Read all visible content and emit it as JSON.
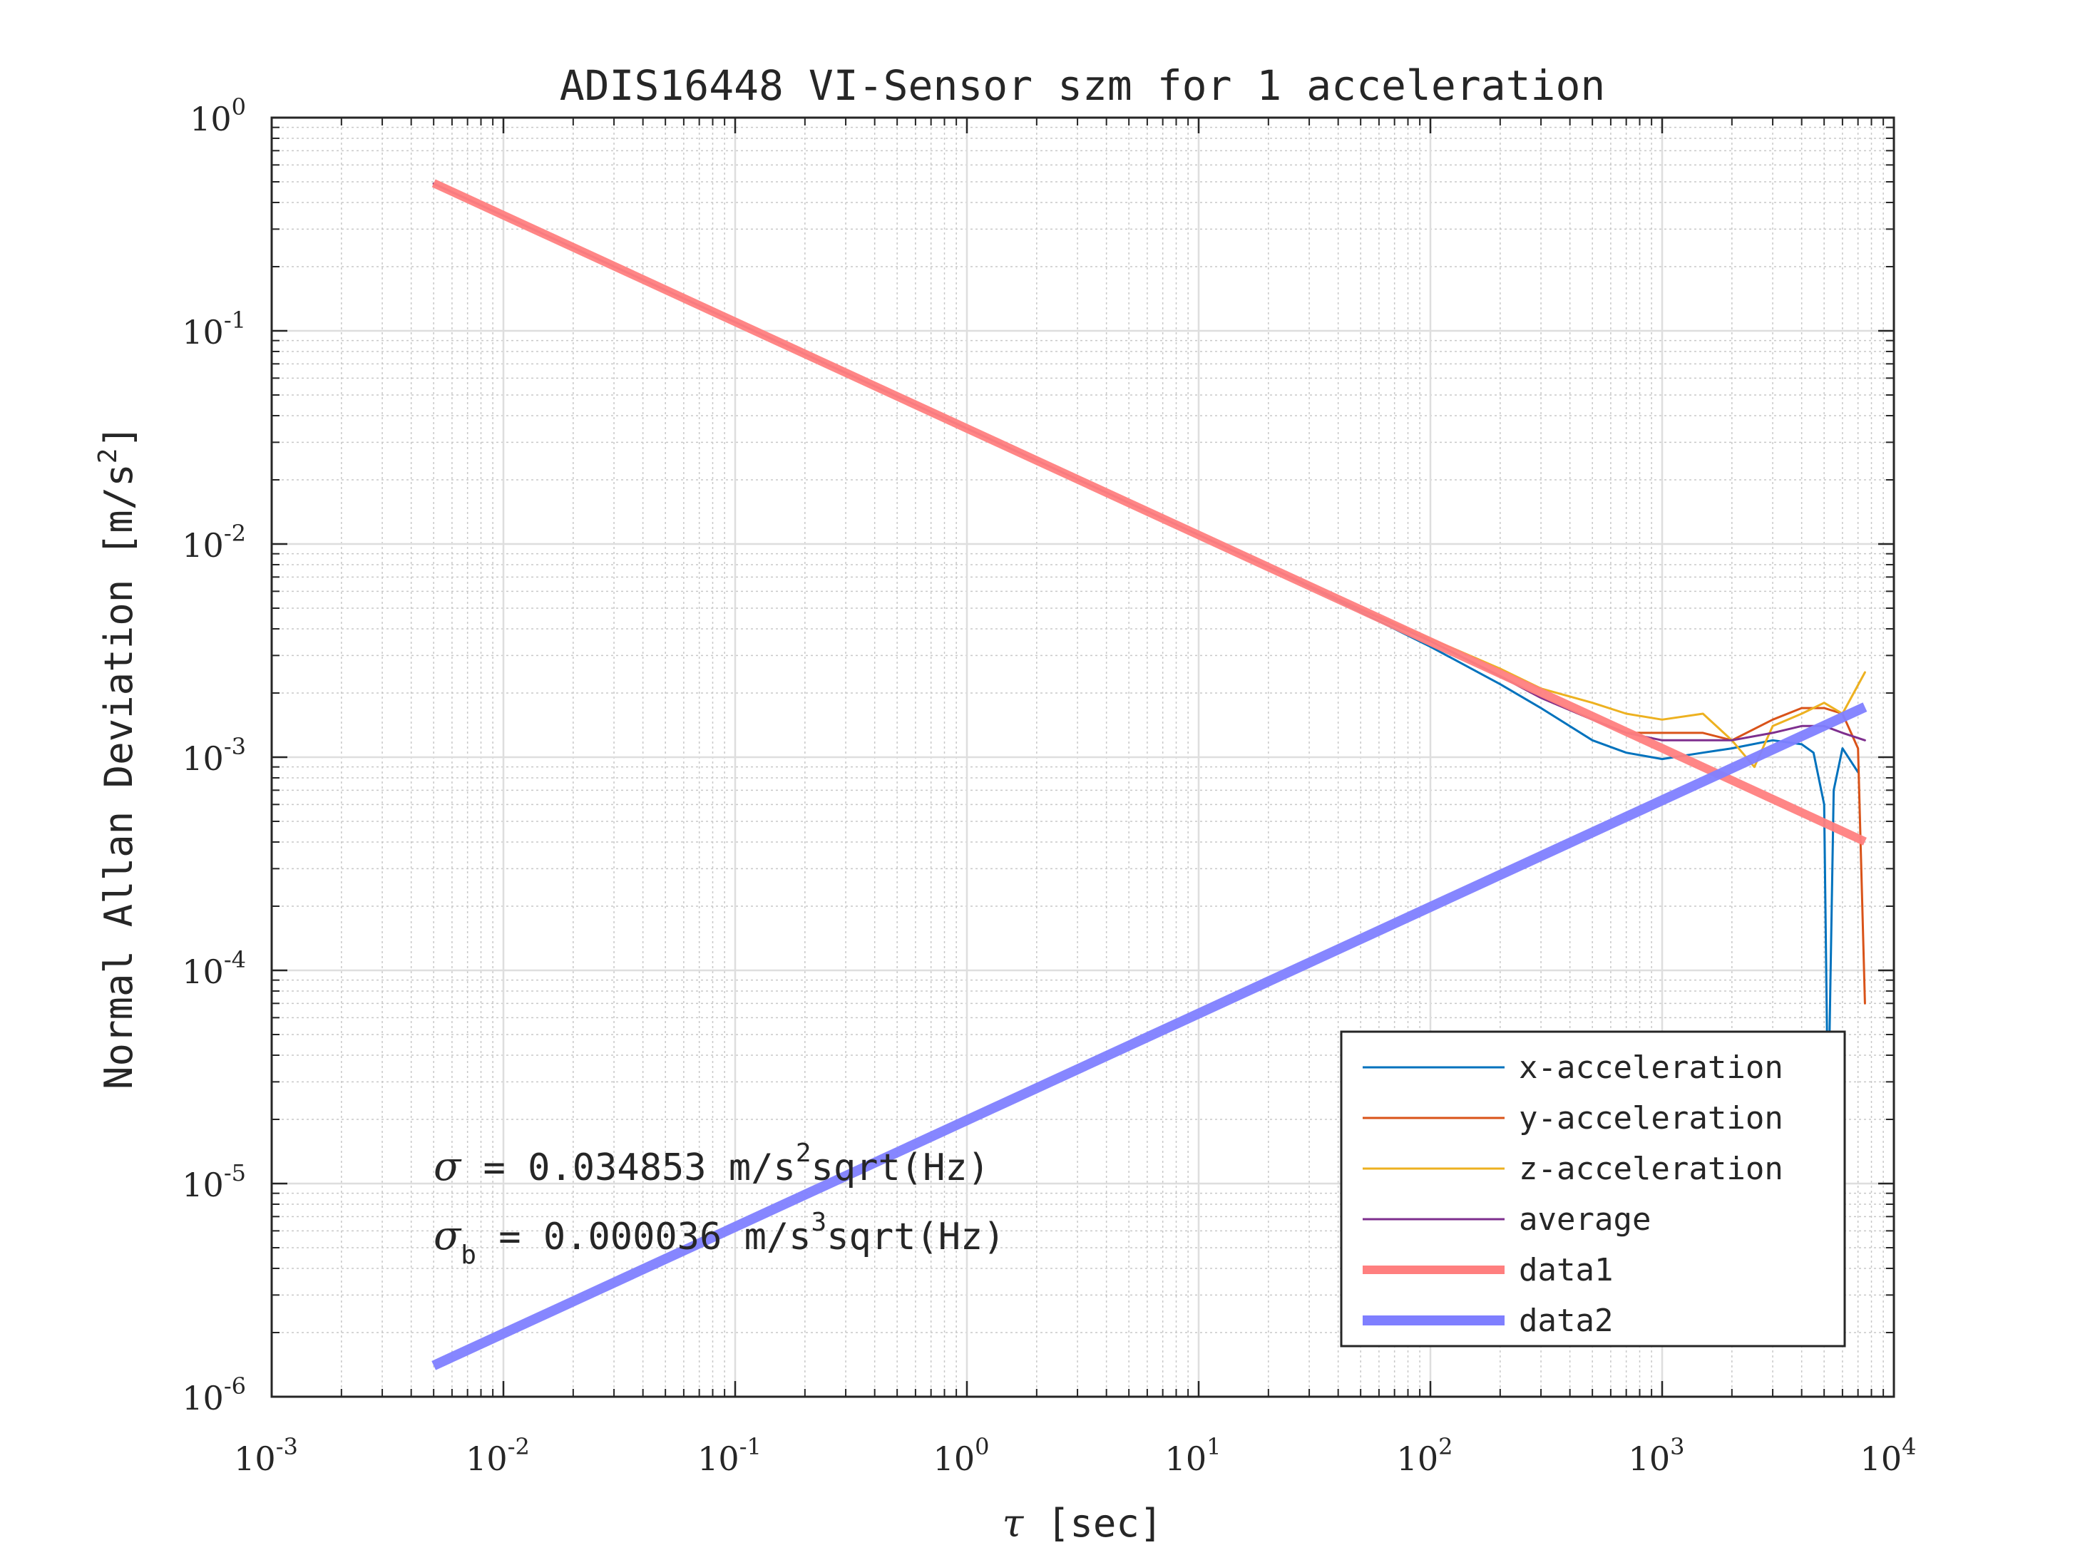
{
  "chart_data": {
    "type": "line",
    "title": "ADIS16448 VI-Sensor szm for 1 acceleration",
    "xlabel_symbol": "τ",
    "xlabel_text": " [sec]",
    "ylabel_text": "Normal Allan Deviation [m/s",
    "ylabel_sup": "2",
    "ylabel_end": "]",
    "xscale": "log",
    "yscale": "log",
    "xlim": [
      0.001,
      10000
    ],
    "ylim": [
      1e-06,
      1
    ],
    "grid": true,
    "minor_grid": true,
    "legend_position": "bottom-right",
    "x_ticks": [
      {
        "base": "10",
        "exp": "-3"
      },
      {
        "base": "10",
        "exp": "-2"
      },
      {
        "base": "10",
        "exp": "-1"
      },
      {
        "base": "10",
        "exp": "0"
      },
      {
        "base": "10",
        "exp": "1"
      },
      {
        "base": "10",
        "exp": "2"
      },
      {
        "base": "10",
        "exp": "3"
      },
      {
        "base": "10",
        "exp": "4"
      }
    ],
    "y_ticks": [
      {
        "base": "10",
        "exp": "-6"
      },
      {
        "base": "10",
        "exp": "-5"
      },
      {
        "base": "10",
        "exp": "-4"
      },
      {
        "base": "10",
        "exp": "-3"
      },
      {
        "base": "10",
        "exp": "-2"
      },
      {
        "base": "10",
        "exp": "-1"
      },
      {
        "base": "10",
        "exp": "0"
      }
    ],
    "series": [
      {
        "name": "x-acceleration",
        "color": "#0072BD",
        "style": "thin",
        "x": [
          0.005,
          1,
          20,
          40,
          100,
          200,
          300,
          500,
          700,
          1000,
          1500,
          2000,
          3000,
          4000,
          4500,
          5000,
          5200,
          5500,
          6000,
          7000
        ],
        "y": [
          0.49,
          0.0348,
          0.0078,
          0.0054,
          0.0033,
          0.0022,
          0.0017,
          0.0012,
          0.00105,
          0.00098,
          0.00105,
          0.0011,
          0.0012,
          0.00115,
          0.00105,
          0.0006,
          2e-05,
          0.0007,
          0.0011,
          0.00085
        ]
      },
      {
        "name": "y-acceleration",
        "color": "#D95319",
        "style": "thin",
        "x": [
          0.005,
          1,
          20,
          40,
          100,
          200,
          300,
          500,
          700,
          1000,
          1500,
          2000,
          3000,
          4000,
          5000,
          6000,
          7000,
          7500
        ],
        "y": [
          0.49,
          0.0348,
          0.0078,
          0.0055,
          0.0035,
          0.0024,
          0.0019,
          0.0015,
          0.0013,
          0.0013,
          0.0013,
          0.0012,
          0.0015,
          0.0017,
          0.0017,
          0.0016,
          0.0011,
          7e-05
        ]
      },
      {
        "name": "z-acceleration",
        "color": "#EDB120",
        "style": "thin",
        "x": [
          0.005,
          1,
          20,
          40,
          100,
          200,
          300,
          500,
          700,
          1000,
          1500,
          2000,
          2500,
          3000,
          4000,
          5000,
          6000,
          7500
        ],
        "y": [
          0.49,
          0.0348,
          0.0078,
          0.0055,
          0.0036,
          0.0026,
          0.0021,
          0.0018,
          0.0016,
          0.0015,
          0.0016,
          0.0012,
          0.0009,
          0.0014,
          0.0016,
          0.0018,
          0.0016,
          0.0025
        ]
      },
      {
        "name": "average",
        "color": "#7E2F8E",
        "style": "thin",
        "x": [
          0.005,
          1,
          20,
          40,
          100,
          200,
          300,
          500,
          700,
          1000,
          1500,
          2000,
          3000,
          4000,
          5000,
          6000,
          7500
        ],
        "y": [
          0.49,
          0.0348,
          0.0078,
          0.0055,
          0.0035,
          0.0024,
          0.0019,
          0.0015,
          0.0013,
          0.0012,
          0.0012,
          0.0012,
          0.0013,
          0.0014,
          0.0014,
          0.0013,
          0.0012
        ]
      },
      {
        "name": "data1",
        "color": "#FF7F7F",
        "style": "thick",
        "x": [
          0.005,
          7500
        ],
        "y": [
          0.4929,
          0.000402
        ]
      },
      {
        "name": "data2",
        "color": "#7F7FFF",
        "style": "thicker",
        "x": [
          0.005,
          7500
        ],
        "y": [
          1.4e-06,
          0.00172
        ]
      }
    ],
    "annotations": [
      {
        "symbol": "σ",
        "sub": "",
        "text": " = 0.034853 m/s",
        "sup": "2",
        "tail": "sqrt(Hz)"
      },
      {
        "symbol": "σ",
        "sub": "b",
        "text": " = 0.000036 m/s",
        "sup": "3",
        "tail": "sqrt(Hz)"
      }
    ]
  }
}
